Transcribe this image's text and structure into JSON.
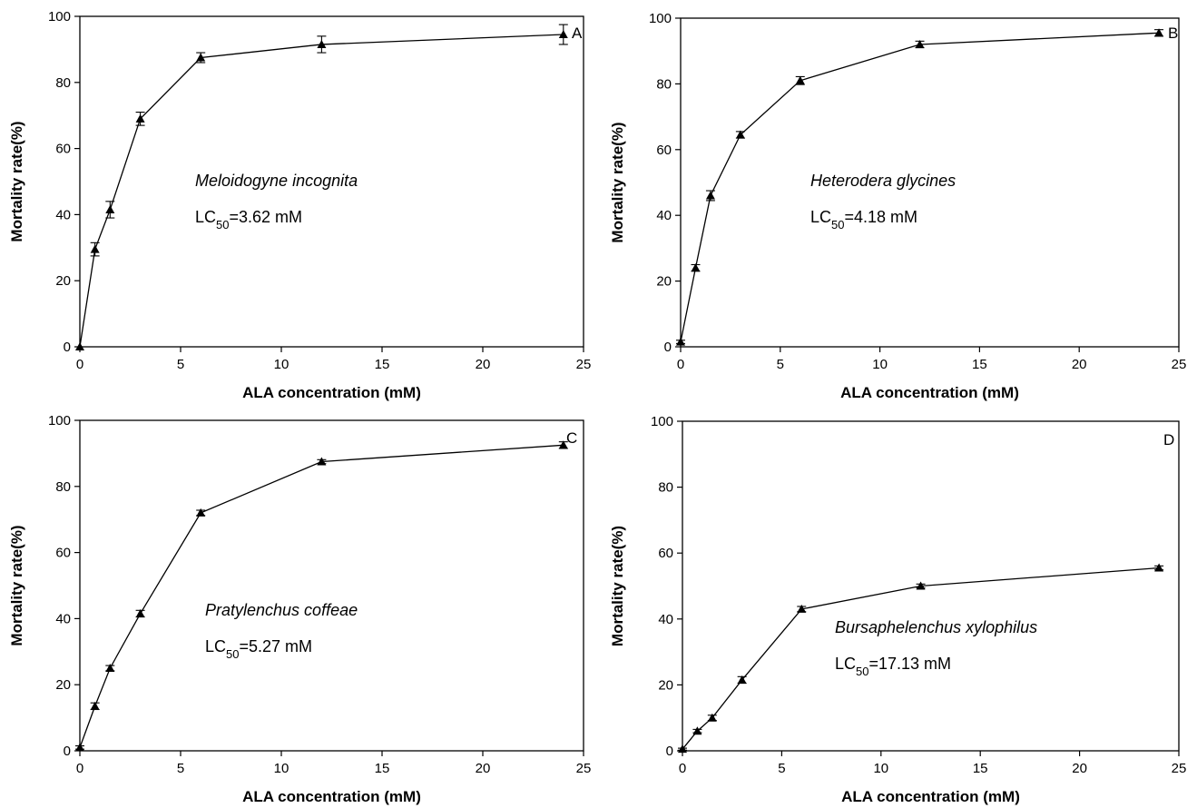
{
  "chart_data": [
    {
      "type": "line",
      "panel": "A",
      "xlabel": "ALA concentration (mM)",
      "ylabel": "Mortality rate(%)",
      "xlim": [
        0,
        25
      ],
      "ylim": [
        0,
        100
      ],
      "xticks": [
        0,
        5,
        10,
        15,
        20,
        25
      ],
      "yticks": [
        0,
        20,
        40,
        60,
        80,
        100
      ],
      "x": [
        0,
        0.75,
        1.5,
        3,
        6,
        12,
        24
      ],
      "y": [
        0,
        29.5,
        41.5,
        69,
        87.5,
        91.5,
        94.5
      ],
      "error": [
        0,
        2,
        2.5,
        2,
        1.5,
        2.5,
        3
      ],
      "annotation": {
        "species": "Meloidogyne incognita",
        "lc_prefix": "LC",
        "lc_sub": "50",
        "lc_value": "=3.62 mM"
      },
      "grid": false
    },
    {
      "type": "line",
      "panel": "B",
      "xlabel": "ALA concentration (mM)",
      "ylabel": "Mortality rate(%)",
      "xlim": [
        0,
        25
      ],
      "ylim": [
        0,
        100
      ],
      "xticks": [
        0,
        5,
        10,
        15,
        20,
        25
      ],
      "yticks": [
        0,
        20,
        40,
        60,
        80,
        100
      ],
      "x": [
        0,
        0.75,
        1.5,
        3,
        6,
        12,
        24
      ],
      "y": [
        1.5,
        24,
        46,
        64.5,
        81,
        92,
        95.5
      ],
      "error": [
        0.5,
        1,
        1.5,
        1,
        1.2,
        1,
        1
      ],
      "annotation": {
        "species": "Heterodera glycines",
        "lc_prefix": "LC",
        "lc_sub": "50",
        "lc_value": "=4.18 mM"
      },
      "grid": false
    },
    {
      "type": "line",
      "panel": "C",
      "xlabel": "ALA concentration (mM)",
      "ylabel": "Mortality rate(%)",
      "xlim": [
        0,
        25
      ],
      "ylim": [
        0,
        100
      ],
      "xticks": [
        0,
        5,
        10,
        15,
        20,
        25
      ],
      "yticks": [
        0,
        20,
        40,
        60,
        80,
        100
      ],
      "x": [
        0,
        0.75,
        1.5,
        3,
        6,
        12,
        24
      ],
      "y": [
        1,
        13.5,
        25,
        41.5,
        72,
        87.5,
        92.5
      ],
      "error": [
        0.5,
        1,
        0.8,
        1,
        0.8,
        0.6,
        1
      ],
      "annotation": {
        "species": "Pratylenchus coffeae",
        "lc_prefix": "LC",
        "lc_sub": "50",
        "lc_value": "=5.27 mM"
      },
      "grid": false
    },
    {
      "type": "line",
      "panel": "D",
      "xlabel": "ALA concentration (mM)",
      "ylabel": "Mortality rate(%)",
      "xlim": [
        0,
        25
      ],
      "ylim": [
        0,
        100
      ],
      "xticks": [
        0,
        5,
        10,
        15,
        20,
        25
      ],
      "yticks": [
        0,
        20,
        40,
        60,
        80,
        100
      ],
      "x": [
        0,
        0.75,
        1.5,
        3,
        6,
        12,
        24
      ],
      "y": [
        0.5,
        6,
        10,
        21.5,
        43,
        50,
        55.5
      ],
      "error": [
        0.3,
        0.5,
        0.8,
        1,
        0.8,
        0.6,
        0.6
      ],
      "annotation": {
        "species": "Bursaphelenchus xylophilus",
        "lc_prefix": "LC",
        "lc_sub": "50",
        "lc_value": "=17.13 mM"
      },
      "grid": false
    }
  ]
}
